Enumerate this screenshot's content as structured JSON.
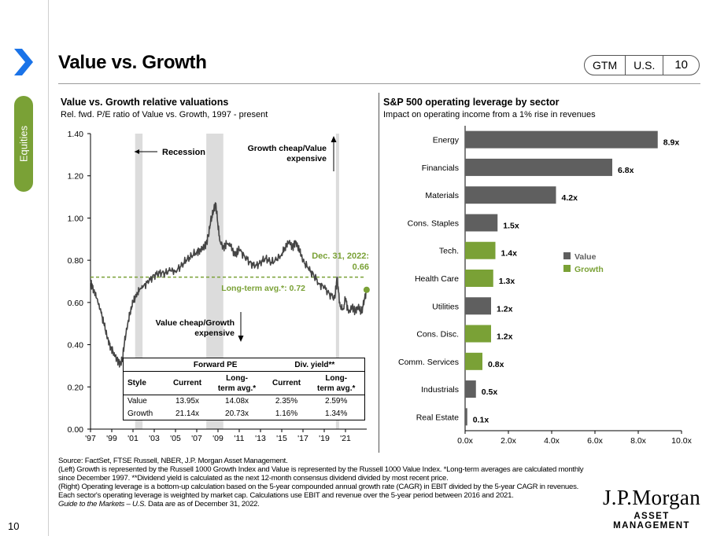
{
  "header": {
    "title": "Value vs. Growth",
    "tags": [
      "GTM",
      "U.S.",
      "10"
    ]
  },
  "sidebar": {
    "section": "Equities",
    "page_number": "10"
  },
  "left_chart": {
    "title": "Value vs. Growth relative valuations",
    "subtitle": "Rel. fwd. P/E ratio of Value vs. Growth, 1997 - present",
    "annotations": {
      "recession": "Recession",
      "growth_cheap_1": "Growth cheap/Value",
      "growth_cheap_2": "expensive",
      "value_cheap_1": "Value cheap/Growth",
      "value_cheap_2": "expensive",
      "latest_1": "Dec. 31, 2022:",
      "latest_2": "0.66",
      "avg": "Long-term avg.*:  0.72"
    },
    "table": {
      "group_forward": "Forward PE",
      "group_div": "Div. yield**",
      "col_style": "Style",
      "col_current": "Current",
      "col_lt_1": "Long-",
      "col_lt_2": "term avg.*",
      "rows": [
        [
          "Value",
          "13.95x",
          "14.08x",
          "2.35%",
          "2.59%"
        ],
        [
          "Growth",
          "21.14x",
          "20.73x",
          "1.16%",
          "1.34%"
        ]
      ]
    }
  },
  "right_chart": {
    "title": "S&P 500 operating leverage by sector",
    "subtitle": "Impact on operating income from a 1% rise in revenues",
    "legend": [
      "Value",
      "Growth"
    ]
  },
  "colors": {
    "value_bar": "#5f5f5f",
    "growth_bar": "#7aa136",
    "line": "#444444",
    "avg_line": "#7aa136",
    "recession": "#dcdcdc"
  },
  "footer": {
    "source": "Source: FactSet, FTSE Russell, NBER, J.P. Morgan Asset Management.",
    "note1": "(Left) Growth is represented by the Russell 1000 Growth Index and Value is represented by the Russell 1000 Value Index. *Long-term averages are calculated monthly since December 1997. **Dividend yield is calculated as the next 12-month consensus dividend divided by most recent price.",
    "note2": "(Right) Operating leverage is a bottom-up calculation based on the 5-year compounded annual growth rate (CAGR) in EBIT divided by the 5-year CAGR in revenues. Each sector's operating leverage is weighted by market cap. Calculations use EBIT and revenue over the 5-year period between 2016 and 2021.",
    "guide": "Guide to the Markets – U.S.",
    "asof": " Data are as of December 31, 2022.",
    "logo_main": "J.P.Morgan",
    "logo_sub": "ASSET MANAGEMENT"
  },
  "chart_data": [
    {
      "type": "line",
      "title": "Value vs. Growth relative valuations",
      "ylabel": "",
      "ylim": [
        0.0,
        1.4
      ],
      "yticks": [
        "0.00",
        "0.20",
        "0.40",
        "0.60",
        "0.80",
        "1.00",
        "1.20",
        "1.40"
      ],
      "xticks": [
        "'97",
        "'99",
        "'01",
        "'03",
        "'05",
        "'07",
        "'09",
        "'11",
        "'13",
        "'15",
        "'17",
        "'19",
        "'21"
      ],
      "xlim": [
        1997.0,
        2023.0
      ],
      "recessions": [
        [
          2001.2,
          2001.9
        ],
        [
          2007.9,
          2009.5
        ],
        [
          2020.1,
          2020.4
        ]
      ],
      "long_term_avg": 0.72,
      "latest": 0.66,
      "series": [
        {
          "x": [
            1997.0,
            1997.3,
            1997.6,
            1998.0,
            1998.3,
            1998.6,
            1998.9,
            1999.2,
            1999.5,
            1999.8,
            2000.0,
            2000.2,
            2000.5,
            2000.8,
            2001.0,
            2001.3,
            2001.6,
            2002.0,
            2002.5,
            2003.0,
            2003.5,
            2004.0,
            2004.5,
            2005.0,
            2005.5,
            2006.0,
            2006.5,
            2007.0,
            2007.3,
            2007.6,
            2007.9,
            2008.1,
            2008.3,
            2008.6,
            2008.8,
            2009.0,
            2009.2,
            2009.5,
            2009.8,
            2010.2,
            2010.6,
            2011.0,
            2011.5,
            2012.0,
            2012.5,
            2013.0,
            2013.5,
            2014.0,
            2014.5,
            2015.0,
            2015.3,
            2015.7,
            2016.0,
            2016.3,
            2016.7,
            2017.0,
            2017.5,
            2018.0,
            2018.5,
            2019.0,
            2019.5,
            2020.0,
            2020.2,
            2020.5,
            2020.8,
            2021.0,
            2021.3,
            2021.6,
            2021.9,
            2022.2,
            2022.5,
            2022.8,
            2022.99
          ],
          "y": [
            0.7,
            0.66,
            0.62,
            0.55,
            0.49,
            0.43,
            0.39,
            0.36,
            0.33,
            0.31,
            0.33,
            0.41,
            0.5,
            0.57,
            0.6,
            0.63,
            0.66,
            0.68,
            0.7,
            0.73,
            0.74,
            0.74,
            0.75,
            0.75,
            0.77,
            0.8,
            0.82,
            0.84,
            0.85,
            0.86,
            0.88,
            0.92,
            0.98,
            1.04,
            1.07,
            0.96,
            0.89,
            0.86,
            0.88,
            0.87,
            0.82,
            0.85,
            0.82,
            0.79,
            0.77,
            0.79,
            0.81,
            0.79,
            0.8,
            0.83,
            0.86,
            0.89,
            0.86,
            0.89,
            0.84,
            0.8,
            0.76,
            0.73,
            0.69,
            0.67,
            0.64,
            0.62,
            0.72,
            0.58,
            0.57,
            0.62,
            0.55,
            0.58,
            0.56,
            0.58,
            0.55,
            0.62,
            0.66
          ]
        }
      ]
    },
    {
      "type": "bar",
      "orientation": "horizontal",
      "title": "S&P 500 operating leverage by sector",
      "xlim": [
        0,
        10
      ],
      "xticks": [
        "0.0x",
        "2.0x",
        "4.0x",
        "6.0x",
        "8.0x",
        "10.0x"
      ],
      "categories": [
        "Energy",
        "Financials",
        "Materials",
        "Cons. Staples",
        "Tech.",
        "Health Care",
        "Utilities",
        "Cons. Disc.",
        "Comm. Services",
        "Industrials",
        "Real Estate"
      ],
      "values": [
        8.9,
        6.8,
        4.2,
        1.5,
        1.4,
        1.3,
        1.2,
        1.2,
        0.8,
        0.5,
        0.1
      ],
      "labels": [
        "8.9x",
        "6.8x",
        "4.2x",
        "1.5x",
        "1.4x",
        "1.3x",
        "1.2x",
        "1.2x",
        "0.8x",
        "0.5x",
        "0.1x"
      ],
      "style": [
        "Value",
        "Value",
        "Value",
        "Value",
        "Growth",
        "Growth",
        "Value",
        "Growth",
        "Growth",
        "Value",
        "Value"
      ],
      "legend": [
        "Value",
        "Growth"
      ],
      "legend_position": "right"
    }
  ]
}
